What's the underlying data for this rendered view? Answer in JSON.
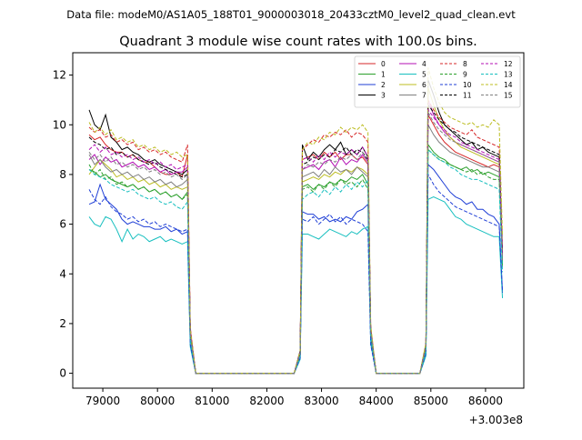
{
  "figure": {
    "suptitle": "Data file: modeM0/AS1A05_188T01_9000003018_20433cztM0_level2_quad_clean.evt"
  },
  "chart_data": {
    "type": "line",
    "title": "Quadrant 3 module wise count rates with 100.0s bins.",
    "xlabel": "",
    "ylabel": "",
    "x_offset_label": "+3.003e8",
    "xlim": [
      78450,
      86700
    ],
    "ylim": [
      -0.6,
      12.9
    ],
    "x_ticks": [
      79000,
      80000,
      81000,
      82000,
      83000,
      84000,
      85000,
      86000
    ],
    "x_tick_labels": [
      "79000",
      "80000",
      "81000",
      "82000",
      "83000",
      "84000",
      "85000",
      "86000"
    ],
    "y_ticks": [
      0,
      2,
      4,
      6,
      8,
      10,
      12
    ],
    "y_tick_labels": [
      "0",
      "2",
      "4",
      "6",
      "8",
      "10",
      "12"
    ],
    "grid": false,
    "legend_position": "top-right",
    "segments": [
      {
        "start": 78750,
        "end": 80550
      },
      {
        "start": 82650,
        "end": 83850
      },
      {
        "start": 84950,
        "end": 86250
      }
    ],
    "bin_seconds": 100,
    "series": [
      {
        "name": "0",
        "color": "#d62728",
        "dash": "solid",
        "seg_values": [
          [
            9.6,
            9.4,
            9.5,
            9.2,
            9.0,
            8.9,
            8.9,
            8.7,
            8.8,
            8.6,
            8.5,
            8.5,
            8.3,
            8.1,
            8.0,
            8.0,
            8.1,
            7.9,
            8.8
          ],
          [
            8.6,
            8.7,
            8.8,
            8.6,
            8.9,
            8.7,
            8.9,
            8.6,
            8.8,
            8.8,
            8.6,
            8.7,
            8.4
          ],
          [
            10.4,
            10.0,
            9.6,
            9.3,
            9.1,
            8.9,
            8.8,
            8.7,
            8.6,
            8.5,
            8.4,
            8.3,
            8.4,
            8.3
          ]
        ]
      },
      {
        "name": "1",
        "color": "#2ca02c",
        "dash": "solid",
        "seg_values": [
          [
            8.2,
            8.1,
            7.9,
            8.0,
            7.8,
            7.7,
            7.6,
            7.5,
            7.6,
            7.4,
            7.5,
            7.3,
            7.4,
            7.2,
            7.3,
            7.1,
            7.2,
            7.0,
            7.3
          ],
          [
            7.5,
            7.6,
            7.4,
            7.6,
            7.5,
            7.7,
            7.6,
            7.8,
            7.7,
            7.9,
            7.8,
            8.0,
            7.6
          ],
          [
            9.2,
            8.9,
            8.7,
            8.6,
            8.4,
            8.3,
            8.2,
            8.3,
            8.1,
            8.2,
            8.0,
            8.1,
            8.0,
            7.9
          ]
        ]
      },
      {
        "name": "2",
        "color": "#1f3fd6",
        "dash": "solid",
        "seg_values": [
          [
            6.8,
            6.9,
            7.6,
            7.0,
            6.8,
            6.6,
            6.2,
            6.0,
            6.1,
            6.0,
            5.9,
            5.9,
            5.8,
            5.8,
            5.9,
            5.7,
            5.8,
            5.6,
            5.7
          ],
          [
            6.5,
            6.4,
            6.4,
            6.2,
            6.3,
            6.1,
            6.2,
            6.1,
            6.3,
            6.2,
            6.5,
            6.6,
            6.8
          ],
          [
            8.4,
            8.2,
            7.9,
            7.6,
            7.3,
            7.1,
            7.0,
            6.8,
            6.9,
            6.6,
            6.6,
            6.4,
            6.3,
            6.0
          ]
        ]
      },
      {
        "name": "3",
        "color": "#000000",
        "dash": "solid",
        "seg_values": [
          [
            10.6,
            10.0,
            9.8,
            10.4,
            9.5,
            9.3,
            9.0,
            9.1,
            8.9,
            8.8,
            8.6,
            8.5,
            8.6,
            8.4,
            8.3,
            8.2,
            8.1,
            8.0,
            8.2
          ],
          [
            9.2,
            8.6,
            8.9,
            8.7,
            9.0,
            9.2,
            9.0,
            9.3,
            8.8,
            9.0,
            8.8,
            9.1,
            8.7
          ],
          [
            11.8,
            11.2,
            10.5,
            10.0,
            9.8,
            9.6,
            9.4,
            9.2,
            9.3,
            9.0,
            9.1,
            8.9,
            8.8,
            8.7
          ]
        ]
      },
      {
        "name": "4",
        "color": "#b30fb3",
        "dash": "solid",
        "seg_values": [
          [
            8.6,
            8.8,
            8.4,
            8.7,
            8.5,
            8.6,
            8.3,
            8.4,
            8.5,
            8.3,
            8.4,
            8.2,
            8.3,
            8.1,
            8.2,
            8.0,
            8.1,
            8.1,
            8.3
          ],
          [
            8.2,
            8.3,
            8.4,
            8.2,
            8.5,
            8.6,
            8.3,
            8.7,
            8.4,
            8.6,
            8.5,
            8.8,
            8.5
          ],
          [
            11.0,
            10.4,
            10.0,
            9.7,
            9.5,
            9.3,
            9.2,
            9.1,
            9.0,
            8.9,
            8.8,
            8.7,
            8.6,
            8.5
          ]
        ]
      },
      {
        "name": "5",
        "color": "#17bfbf",
        "dash": "solid",
        "seg_values": [
          [
            6.3,
            6.0,
            5.9,
            6.3,
            6.2,
            5.8,
            5.3,
            5.8,
            5.4,
            5.6,
            5.5,
            5.3,
            5.4,
            5.5,
            5.3,
            5.4,
            5.3,
            5.2,
            5.3
          ],
          [
            5.6,
            5.6,
            5.5,
            5.4,
            5.6,
            5.8,
            5.7,
            5.6,
            5.5,
            5.7,
            5.6,
            5.8,
            5.9
          ],
          [
            7.0,
            7.1,
            7.0,
            6.9,
            6.6,
            6.3,
            6.2,
            6.0,
            5.9,
            5.8,
            5.7,
            5.6,
            5.5,
            5.5
          ]
        ]
      },
      {
        "name": "6",
        "color": "#bcbd22",
        "dash": "solid",
        "seg_values": [
          [
            8.0,
            8.3,
            8.6,
            8.4,
            8.2,
            7.9,
            8.0,
            7.8,
            7.9,
            7.7,
            7.8,
            7.6,
            7.7,
            7.5,
            7.6,
            7.4,
            7.5,
            7.4,
            7.5
          ],
          [
            7.7,
            7.8,
            7.9,
            7.8,
            8.0,
            7.9,
            8.1,
            8.0,
            8.2,
            8.1,
            8.3,
            8.2,
            8.0
          ],
          [
            11.5,
            10.8,
            10.2,
            9.8,
            9.5,
            9.3,
            9.1,
            9.0,
            8.9,
            8.8,
            8.7,
            8.6,
            8.5,
            8.4
          ]
        ]
      },
      {
        "name": "7",
        "color": "#7f7f7f",
        "dash": "solid",
        "seg_values": [
          [
            8.8,
            8.4,
            8.6,
            8.3,
            8.1,
            8.2,
            8.0,
            8.1,
            7.9,
            8.0,
            7.8,
            7.9,
            7.7,
            7.8,
            7.6,
            7.7,
            7.5,
            7.6,
            7.8
          ],
          [
            7.9,
            8.0,
            8.1,
            7.9,
            8.2,
            8.0,
            8.3,
            8.1,
            8.2,
            8.0,
            8.3,
            8.1,
            7.9
          ],
          [
            10.0,
            9.6,
            9.3,
            9.1,
            8.9,
            8.8,
            8.7,
            8.6,
            8.5,
            8.4,
            8.3,
            8.3,
            8.2,
            8.1
          ]
        ]
      },
      {
        "name": "8",
        "color": "#d62728",
        "dash": "dashed",
        "seg_values": [
          [
            9.9,
            9.7,
            9.8,
            9.5,
            9.6,
            9.3,
            9.4,
            9.2,
            9.3,
            9.0,
            9.1,
            8.9,
            9.0,
            8.8,
            8.9,
            8.7,
            8.6,
            8.5,
            9.2
          ],
          [
            9.0,
            9.2,
            9.4,
            9.3,
            9.6,
            9.5,
            9.7,
            9.6,
            9.8,
            9.5,
            9.7,
            9.6,
            9.3
          ],
          [
            11.0,
            10.6,
            10.3,
            10.1,
            9.9,
            9.8,
            9.7,
            9.6,
            9.8,
            9.5,
            9.4,
            9.3,
            9.2,
            9.1
          ]
        ]
      },
      {
        "name": "9",
        "color": "#2ca02c",
        "dash": "dashed",
        "seg_values": [
          [
            8.4,
            8.0,
            8.2,
            7.8,
            7.9,
            7.6,
            7.7,
            7.5,
            7.6,
            7.4,
            7.5,
            7.3,
            7.4,
            7.2,
            7.3,
            7.1,
            7.2,
            7.0,
            7.2
          ],
          [
            7.4,
            7.5,
            7.3,
            7.6,
            7.4,
            7.7,
            7.5,
            7.8,
            7.6,
            7.7,
            7.5,
            7.8,
            7.4
          ],
          [
            9.0,
            8.8,
            8.6,
            8.5,
            8.4,
            8.3,
            8.2,
            8.1,
            8.2,
            8.0,
            8.1,
            7.9,
            7.8,
            7.8
          ]
        ]
      },
      {
        "name": "10",
        "color": "#1f3fd6",
        "dash": "dashed",
        "seg_values": [
          [
            7.4,
            7.0,
            6.8,
            7.1,
            6.7,
            6.5,
            6.4,
            6.2,
            6.3,
            6.1,
            6.2,
            6.0,
            6.1,
            5.9,
            6.0,
            5.9,
            5.8,
            5.7,
            5.8
          ],
          [
            6.2,
            6.1,
            6.3,
            6.0,
            6.2,
            6.4,
            6.1,
            6.3,
            6.0,
            6.2,
            6.1,
            6.0,
            5.7
          ],
          [
            8.0,
            7.6,
            7.3,
            7.1,
            6.9,
            6.7,
            6.6,
            6.5,
            6.4,
            6.3,
            6.2,
            6.1,
            6.0,
            5.9
          ]
        ]
      },
      {
        "name": "11",
        "color": "#000000",
        "dash": "dashed",
        "seg_values": [
          [
            9.5,
            9.3,
            9.2,
            9.0,
            9.1,
            8.8,
            8.9,
            8.7,
            8.8,
            8.6,
            8.5,
            8.4,
            8.5,
            8.3,
            8.2,
            8.1,
            8.0,
            7.9,
            8.0
          ],
          [
            8.4,
            8.5,
            8.7,
            8.6,
            8.8,
            8.7,
            9.0,
            8.9,
            9.1,
            8.8,
            9.0,
            8.9,
            8.6
          ],
          [
            10.8,
            10.5,
            10.2,
            10.0,
            9.8,
            9.7,
            9.5,
            9.4,
            9.3,
            9.2,
            9.1,
            9.0,
            8.9,
            8.8
          ]
        ]
      },
      {
        "name": "12",
        "color": "#b30fb3",
        "dash": "dashed",
        "seg_values": [
          [
            9.0,
            9.2,
            8.9,
            9.1,
            8.8,
            8.9,
            8.7,
            8.8,
            8.6,
            8.7,
            8.5,
            8.6,
            8.4,
            8.5,
            8.3,
            8.4,
            8.2,
            8.3,
            8.4
          ],
          [
            8.6,
            8.7,
            8.5,
            8.8,
            8.6,
            8.9,
            8.7,
            8.9,
            8.8,
            9.0,
            8.8,
            9.1,
            8.7
          ],
          [
            10.6,
            10.3,
            10.0,
            9.8,
            9.6,
            9.5,
            9.3,
            9.2,
            9.1,
            9.0,
            8.9,
            8.8,
            8.7,
            8.6
          ]
        ]
      },
      {
        "name": "13",
        "color": "#17bfbf",
        "dash": "dashed",
        "seg_values": [
          [
            8.2,
            8.0,
            7.9,
            7.8,
            7.6,
            7.5,
            7.4,
            7.3,
            7.4,
            7.2,
            7.1,
            7.0,
            7.1,
            6.9,
            6.8,
            6.9,
            6.7,
            6.6,
            6.9
          ],
          [
            7.0,
            7.2,
            7.3,
            7.1,
            7.4,
            7.2,
            7.5,
            7.3,
            7.6,
            7.4,
            7.7,
            7.5,
            7.8
          ],
          [
            9.0,
            8.8,
            8.6,
            8.5,
            8.3,
            8.2,
            8.0,
            7.9,
            7.8,
            7.8,
            7.7,
            7.6,
            7.5,
            7.4
          ]
        ]
      },
      {
        "name": "14",
        "color": "#bcbd22",
        "dash": "dashed",
        "seg_values": [
          [
            10.1,
            9.7,
            9.9,
            9.6,
            9.8,
            9.4,
            9.5,
            9.3,
            9.4,
            9.1,
            9.2,
            9.0,
            9.1,
            8.9,
            9.0,
            8.8,
            8.9,
            8.7,
            8.8
          ],
          [
            9.0,
            9.3,
            9.2,
            9.5,
            9.4,
            9.7,
            9.6,
            9.9,
            9.7,
            9.9,
            9.8,
            10.0,
            9.7
          ],
          [
            12.3,
            11.5,
            10.9,
            10.5,
            10.3,
            10.2,
            10.1,
            10.0,
            10.1,
            9.9,
            10.0,
            9.9,
            10.2,
            10.0
          ]
        ]
      },
      {
        "name": "15",
        "color": "#7f7f7f",
        "dash": "dashed",
        "seg_values": [
          [
            8.9,
            8.6,
            8.8,
            8.5,
            8.7,
            8.4,
            8.5,
            8.3,
            8.4,
            8.2,
            8.3,
            8.1,
            8.2,
            8.0,
            8.1,
            7.9,
            8.0,
            7.8,
            8.0
          ],
          [
            8.2,
            8.4,
            8.3,
            8.5,
            8.4,
            8.6,
            8.5,
            8.7,
            8.6,
            8.8,
            8.6,
            8.9,
            8.5
          ],
          [
            10.5,
            10.1,
            9.8,
            9.6,
            9.4,
            9.3,
            9.2,
            9.1,
            9.0,
            8.9,
            8.8,
            8.7,
            8.6,
            8.5
          ]
        ]
      }
    ]
  }
}
